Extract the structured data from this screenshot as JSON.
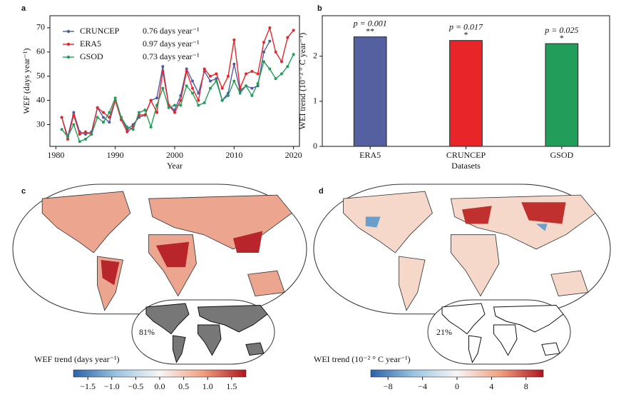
{
  "chart_data": [
    {
      "type": "line",
      "panel": "a",
      "xlabel": "Year",
      "ylabel": "WEF (days year⁻¹)",
      "x": [
        1981,
        1982,
        1983,
        1984,
        1985,
        1986,
        1987,
        1988,
        1989,
        1990,
        1991,
        1992,
        1993,
        1994,
        1995,
        1996,
        1997,
        1998,
        1999,
        2000,
        2001,
        2002,
        2003,
        2004,
        2005,
        2006,
        2007,
        2008,
        2009,
        2010,
        2011,
        2012,
        2013,
        2014,
        2015,
        2016,
        2017,
        2018,
        2019,
        2020
      ],
      "xlim": [
        1979,
        2021
      ],
      "xticks": [
        1980,
        1990,
        2000,
        2010,
        2020
      ],
      "ylim": [
        21,
        75
      ],
      "yticks": [
        30,
        40,
        50,
        60,
        70
      ],
      "series": [
        {
          "name": "CRUNCEP",
          "color": "#4f5ba6",
          "trend": "0.76 days year⁻¹",
          "values": [
            33,
            25,
            35,
            27,
            26,
            27,
            37,
            33,
            31,
            40,
            33,
            28,
            30,
            33,
            34,
            40,
            41,
            54,
            38,
            36,
            42,
            53,
            48,
            43,
            52,
            48,
            49,
            40,
            43,
            55,
            44,
            46,
            45,
            46,
            60,
            64.5,
            null,
            null,
            null,
            null
          ]
        },
        {
          "name": "ERA5",
          "color": "#e8262a",
          "trend": "0.97 days year⁻¹",
          "values": [
            33,
            24,
            34,
            26,
            27,
            26,
            37,
            35,
            33,
            40,
            32,
            27,
            29,
            34,
            34,
            40,
            35,
            52,
            38,
            35,
            40,
            52,
            45,
            40,
            53,
            50,
            51,
            45,
            50,
            65,
            45,
            51,
            52,
            51,
            64,
            70,
            60,
            56,
            66,
            69
          ]
        },
        {
          "name": "GSOD",
          "color": "#239e5a",
          "trend": "0.73 days year⁻¹",
          "values": [
            28,
            25,
            30,
            23,
            24,
            26,
            33,
            31,
            35,
            41,
            33,
            29,
            28,
            35,
            36,
            29,
            38,
            45,
            37,
            38,
            38,
            46,
            43,
            38,
            39,
            45,
            48,
            40,
            42,
            48,
            43,
            46,
            42,
            47,
            56,
            53,
            49,
            51,
            54,
            59
          ]
        }
      ]
    },
    {
      "type": "bar",
      "panel": "b",
      "xlabel": "Datasets",
      "ylabel": "WEI trend (10⁻² ° C year⁻¹)",
      "categories": [
        "ERA5",
        "CRUNCEP",
        "GSOD"
      ],
      "values": [
        2.43,
        2.35,
        2.28
      ],
      "colors": [
        "#5560a0",
        "#e8262a",
        "#239e5a"
      ],
      "p_labels": [
        "p = 0.001",
        "p = 0.017",
        "p = 0.025"
      ],
      "stars": [
        "**",
        "*",
        "*"
      ],
      "ylim": [
        0,
        2.9
      ],
      "yticks": [
        0,
        1,
        2
      ]
    },
    {
      "type": "map",
      "panel": "c",
      "inset_label": "81%",
      "colorbar_label": "WEF trend (days year⁻¹)",
      "xlim": [
        -1.8,
        1.8
      ],
      "xticks": [
        {
          "value": -1.5,
          "label": "−1.5"
        },
        {
          "value": -1,
          "label": "−1.0"
        },
        {
          "value": -0.5,
          "label": "−0.5"
        },
        {
          "value": 0,
          "label": "0.0"
        },
        0.5,
        {
          "value": 1,
          "label": "1.0"
        },
        1.5
      ]
    },
    {
      "type": "map",
      "panel": "d",
      "inset_label": "21%",
      "colorbar_label": "WEI trend (10⁻² ° C year⁻¹)",
      "xlim": [
        -10,
        10
      ],
      "xticks": [
        {
          "value": -8,
          "label": "−8"
        },
        {
          "value": -4,
          "label": "−4"
        },
        0,
        4,
        8
      ]
    }
  ]
}
